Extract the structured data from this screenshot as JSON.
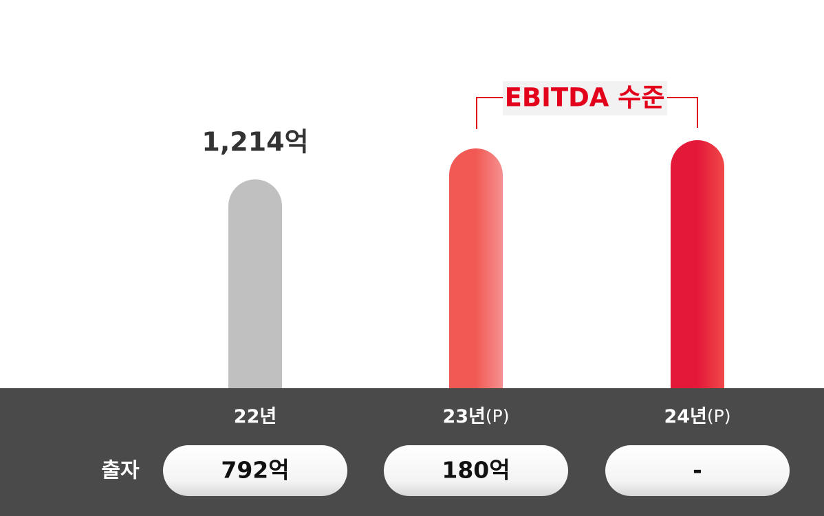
{
  "chart_data": {
    "type": "bar",
    "categories": [
      "22년",
      "23년",
      "24년"
    ],
    "category_suffixes": [
      null,
      "(P)",
      "(P)"
    ],
    "values": [
      1214,
      1394,
      1442
    ],
    "value_labels": [
      "1,214억",
      null,
      null
    ],
    "colors": [
      [
        "#c0c0c0",
        "#c0c0c0"
      ],
      [
        "#f15a54",
        "#f59090"
      ],
      [
        "#e4193a",
        "#f04848"
      ]
    ],
    "annotation": "EBITDA 수준",
    "investment": {
      "label": "출자",
      "values": [
        792,
        180,
        null
      ],
      "value_labels": [
        "792억",
        "180억",
        "-"
      ]
    }
  }
}
